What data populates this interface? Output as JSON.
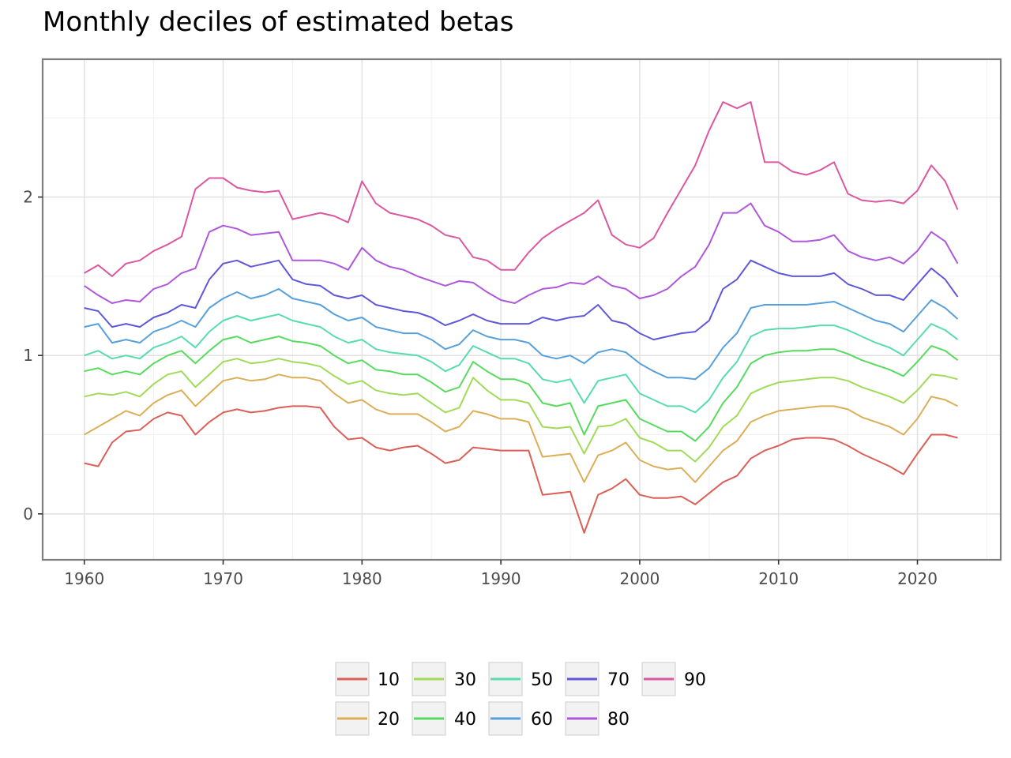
{
  "chart_data": {
    "type": "line",
    "title": "Monthly deciles of estimated betas",
    "xlabel": "",
    "ylabel": "",
    "xlim": [
      1957,
      2026
    ],
    "ylim": [
      -0.29,
      2.87
    ],
    "x_ticks": [
      "1960",
      "1970",
      "1980",
      "1990",
      "2000",
      "2010",
      "2020"
    ],
    "y_ticks": [
      "0",
      "1",
      "2"
    ],
    "grid": true,
    "legend_position": "bottom",
    "x": [
      1960,
      1961,
      1962,
      1963,
      1964,
      1965,
      1966,
      1967,
      1968,
      1969,
      1970,
      1971,
      1972,
      1973,
      1974,
      1975,
      1976,
      1977,
      1978,
      1979,
      1980,
      1981,
      1982,
      1983,
      1984,
      1985,
      1986,
      1987,
      1988,
      1989,
      1990,
      1991,
      1992,
      1993,
      1994,
      1995,
      1996,
      1997,
      1998,
      1999,
      2000,
      2001,
      2002,
      2003,
      2004,
      2005,
      2006,
      2007,
      2008,
      2009,
      2010,
      2011,
      2012,
      2013,
      2014,
      2015,
      2016,
      2017,
      2018,
      2019,
      2020,
      2021,
      2022,
      2022.9
    ],
    "series": [
      {
        "name": "10",
        "color": "#db5f57",
        "values": [
          0.32,
          0.3,
          0.45,
          0.52,
          0.53,
          0.6,
          0.64,
          0.62,
          0.5,
          0.58,
          0.64,
          0.66,
          0.64,
          0.65,
          0.67,
          0.68,
          0.68,
          0.67,
          0.55,
          0.47,
          0.48,
          0.42,
          0.4,
          0.42,
          0.43,
          0.38,
          0.32,
          0.34,
          0.42,
          0.41,
          0.4,
          0.4,
          0.4,
          0.12,
          0.13,
          0.14,
          -0.12,
          0.12,
          0.16,
          0.22,
          0.12,
          0.1,
          0.1,
          0.11,
          0.06,
          0.13,
          0.2,
          0.24,
          0.35,
          0.4,
          0.43,
          0.47,
          0.48,
          0.48,
          0.47,
          0.43,
          0.38,
          0.34,
          0.3,
          0.25,
          0.38,
          0.5,
          0.5,
          0.48
        ]
      },
      {
        "name": "20",
        "color": "#dbaf57",
        "values": [
          0.5,
          0.55,
          0.6,
          0.65,
          0.62,
          0.7,
          0.75,
          0.78,
          0.68,
          0.76,
          0.84,
          0.86,
          0.84,
          0.85,
          0.88,
          0.86,
          0.86,
          0.84,
          0.76,
          0.7,
          0.72,
          0.66,
          0.63,
          0.63,
          0.63,
          0.58,
          0.52,
          0.55,
          0.65,
          0.63,
          0.6,
          0.6,
          0.58,
          0.36,
          0.37,
          0.38,
          0.2,
          0.37,
          0.4,
          0.45,
          0.34,
          0.3,
          0.28,
          0.29,
          0.2,
          0.3,
          0.4,
          0.46,
          0.58,
          0.62,
          0.65,
          0.66,
          0.67,
          0.68,
          0.68,
          0.66,
          0.61,
          0.58,
          0.55,
          0.5,
          0.6,
          0.74,
          0.72,
          0.68
        ]
      },
      {
        "name": "30",
        "color": "#a0db57",
        "values": [
          0.74,
          0.76,
          0.75,
          0.77,
          0.74,
          0.82,
          0.88,
          0.9,
          0.8,
          0.88,
          0.96,
          0.98,
          0.95,
          0.96,
          0.98,
          0.96,
          0.95,
          0.93,
          0.87,
          0.82,
          0.84,
          0.78,
          0.76,
          0.75,
          0.76,
          0.7,
          0.64,
          0.67,
          0.86,
          0.78,
          0.72,
          0.72,
          0.7,
          0.55,
          0.54,
          0.55,
          0.38,
          0.55,
          0.56,
          0.6,
          0.48,
          0.45,
          0.4,
          0.4,
          0.33,
          0.42,
          0.55,
          0.62,
          0.76,
          0.8,
          0.83,
          0.84,
          0.85,
          0.86,
          0.86,
          0.84,
          0.8,
          0.77,
          0.74,
          0.7,
          0.78,
          0.88,
          0.87,
          0.85
        ]
      },
      {
        "name": "40",
        "color": "#57db5f",
        "values": [
          0.9,
          0.92,
          0.88,
          0.9,
          0.88,
          0.95,
          1.0,
          1.03,
          0.95,
          1.03,
          1.1,
          1.12,
          1.08,
          1.1,
          1.12,
          1.09,
          1.08,
          1.06,
          1.0,
          0.95,
          0.97,
          0.91,
          0.9,
          0.88,
          0.88,
          0.83,
          0.77,
          0.8,
          0.96,
          0.9,
          0.85,
          0.85,
          0.82,
          0.7,
          0.68,
          0.7,
          0.5,
          0.68,
          0.7,
          0.72,
          0.6,
          0.56,
          0.52,
          0.52,
          0.46,
          0.55,
          0.7,
          0.8,
          0.95,
          1.0,
          1.02,
          1.03,
          1.03,
          1.04,
          1.04,
          1.01,
          0.97,
          0.94,
          0.91,
          0.87,
          0.96,
          1.06,
          1.03,
          0.97
        ]
      },
      {
        "name": "50",
        "color": "#57dbaf",
        "values": [
          1.0,
          1.03,
          0.98,
          1.0,
          0.98,
          1.05,
          1.08,
          1.12,
          1.05,
          1.15,
          1.22,
          1.25,
          1.22,
          1.24,
          1.26,
          1.22,
          1.2,
          1.18,
          1.12,
          1.08,
          1.1,
          1.04,
          1.02,
          1.01,
          1.0,
          0.96,
          0.9,
          0.94,
          1.06,
          1.02,
          0.98,
          0.98,
          0.95,
          0.85,
          0.83,
          0.85,
          0.7,
          0.84,
          0.86,
          0.88,
          0.76,
          0.72,
          0.68,
          0.68,
          0.64,
          0.72,
          0.86,
          0.96,
          1.12,
          1.16,
          1.17,
          1.17,
          1.18,
          1.19,
          1.19,
          1.16,
          1.12,
          1.08,
          1.05,
          1.0,
          1.1,
          1.2,
          1.16,
          1.1
        ]
      },
      {
        "name": "60",
        "color": "#57a0db",
        "values": [
          1.18,
          1.2,
          1.08,
          1.1,
          1.08,
          1.15,
          1.18,
          1.22,
          1.18,
          1.3,
          1.36,
          1.4,
          1.36,
          1.38,
          1.42,
          1.36,
          1.34,
          1.32,
          1.26,
          1.22,
          1.24,
          1.18,
          1.16,
          1.14,
          1.14,
          1.1,
          1.04,
          1.07,
          1.16,
          1.12,
          1.1,
          1.1,
          1.08,
          1.0,
          0.98,
          1.0,
          0.95,
          1.02,
          1.04,
          1.02,
          0.95,
          0.9,
          0.86,
          0.86,
          0.85,
          0.92,
          1.05,
          1.14,
          1.3,
          1.32,
          1.32,
          1.32,
          1.32,
          1.33,
          1.34,
          1.3,
          1.26,
          1.22,
          1.2,
          1.15,
          1.25,
          1.35,
          1.3,
          1.23
        ]
      },
      {
        "name": "70",
        "color": "#5f57db",
        "values": [
          1.3,
          1.28,
          1.18,
          1.2,
          1.18,
          1.24,
          1.27,
          1.32,
          1.3,
          1.48,
          1.58,
          1.6,
          1.56,
          1.58,
          1.6,
          1.48,
          1.45,
          1.44,
          1.38,
          1.36,
          1.38,
          1.32,
          1.3,
          1.28,
          1.27,
          1.24,
          1.19,
          1.22,
          1.26,
          1.22,
          1.2,
          1.2,
          1.2,
          1.24,
          1.22,
          1.24,
          1.25,
          1.32,
          1.22,
          1.2,
          1.14,
          1.1,
          1.12,
          1.14,
          1.15,
          1.22,
          1.42,
          1.48,
          1.6,
          1.56,
          1.52,
          1.5,
          1.5,
          1.5,
          1.52,
          1.45,
          1.42,
          1.38,
          1.38,
          1.35,
          1.45,
          1.55,
          1.48,
          1.37
        ]
      },
      {
        "name": "80",
        "color": "#af57db",
        "values": [
          1.44,
          1.38,
          1.33,
          1.35,
          1.34,
          1.42,
          1.45,
          1.52,
          1.55,
          1.78,
          1.82,
          1.8,
          1.76,
          1.77,
          1.78,
          1.6,
          1.6,
          1.6,
          1.58,
          1.54,
          1.68,
          1.6,
          1.56,
          1.54,
          1.5,
          1.47,
          1.44,
          1.47,
          1.46,
          1.4,
          1.35,
          1.33,
          1.38,
          1.42,
          1.43,
          1.46,
          1.45,
          1.5,
          1.44,
          1.42,
          1.36,
          1.38,
          1.42,
          1.5,
          1.56,
          1.7,
          1.9,
          1.9,
          1.96,
          1.82,
          1.78,
          1.72,
          1.72,
          1.73,
          1.76,
          1.66,
          1.62,
          1.6,
          1.62,
          1.58,
          1.66,
          1.78,
          1.72,
          1.58
        ]
      },
      {
        "name": "90",
        "color": "#db57a0",
        "values": [
          1.52,
          1.57,
          1.5,
          1.58,
          1.6,
          1.66,
          1.7,
          1.75,
          2.05,
          2.12,
          2.12,
          2.06,
          2.04,
          2.03,
          2.04,
          1.86,
          1.88,
          1.9,
          1.88,
          1.84,
          2.1,
          1.96,
          1.9,
          1.88,
          1.86,
          1.82,
          1.76,
          1.74,
          1.62,
          1.6,
          1.54,
          1.54,
          1.65,
          1.74,
          1.8,
          1.85,
          1.9,
          1.98,
          1.76,
          1.7,
          1.68,
          1.74,
          1.9,
          2.05,
          2.2,
          2.42,
          2.6,
          2.56,
          2.6,
          2.22,
          2.22,
          2.16,
          2.14,
          2.17,
          2.22,
          2.02,
          1.98,
          1.97,
          1.98,
          1.96,
          2.04,
          2.2,
          2.1,
          1.92
        ]
      }
    ]
  }
}
